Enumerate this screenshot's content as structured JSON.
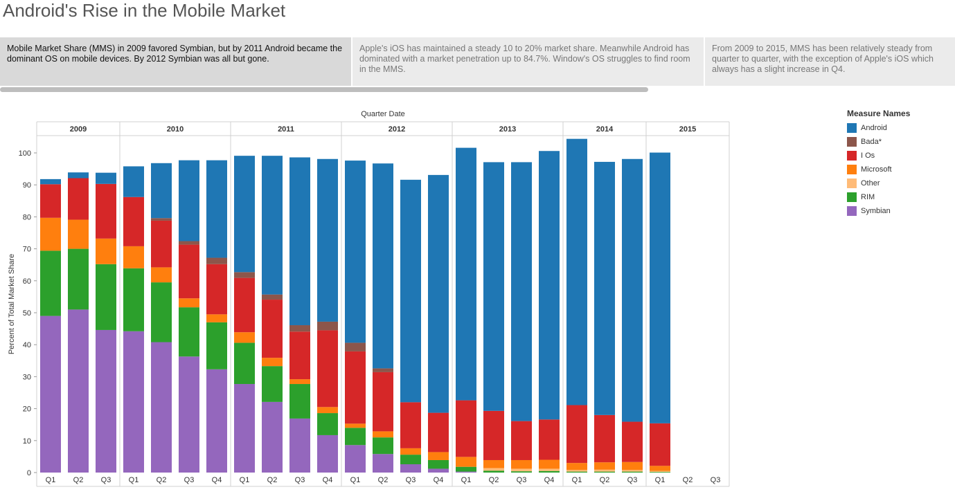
{
  "title": "Android's Rise in the Mobile Market",
  "captions": [
    "Mobile Market Share (MMS) in 2009 favored Symbian, but by 2011 Android became the dominant OS on mobile devices.  By 2012 Symbian was all but gone.",
    "Apple's iOS has maintained a steady 10 to 20% market share.  Meanwhile Android has dominated with a market penetration up to 84.7%.  Window's OS struggles to find room in the MMS.",
    "From 2009 to 2015, MMS has been relatively steady from quarter to quarter, with the exception of Apple's iOS which always has a slight increase in Q4."
  ],
  "legend": {
    "title": "Measure Names"
  },
  "colors": {
    "Android": "#1f77b4",
    "Bada*": "#8c564b",
    "I Os": "#d62728",
    "Microsoft": "#ff7f0e",
    "Other": "#ffbb78",
    "RIM": "#2ca02c",
    "Symbian": "#9467bd"
  },
  "chart_data": {
    "type": "bar",
    "stacked": true,
    "title": "",
    "xlabel": "Quarter Date",
    "ylabel": "Percent of Total Market Share",
    "ylim": [
      0,
      105
    ],
    "yticks": [
      0,
      10,
      20,
      30,
      40,
      50,
      60,
      70,
      80,
      90,
      100
    ],
    "grid": false,
    "legend_position": "right",
    "groups": [
      {
        "year": "2009",
        "quarters": [
          "Q1",
          "Q2",
          "Q3"
        ]
      },
      {
        "year": "2010",
        "quarters": [
          "Q1",
          "Q2",
          "Q3",
          "Q4"
        ]
      },
      {
        "year": "2011",
        "quarters": [
          "Q1",
          "Q2",
          "Q3",
          "Q4"
        ]
      },
      {
        "year": "2012",
        "quarters": [
          "Q1",
          "Q2",
          "Q3",
          "Q4"
        ]
      },
      {
        "year": "2013",
        "quarters": [
          "Q1",
          "Q2",
          "Q3",
          "Q4"
        ]
      },
      {
        "year": "2014",
        "quarters": [
          "Q1",
          "Q2",
          "Q3"
        ]
      },
      {
        "year": "2015",
        "quarters": [
          "Q1",
          "Q2",
          "Q3"
        ]
      }
    ],
    "stack_order": [
      "Symbian",
      "RIM",
      "Other",
      "Microsoft",
      "I Os",
      "Bada*",
      "Android"
    ],
    "series": [
      {
        "name": "Android",
        "values": [
          1.6,
          1.8,
          3.5,
          9.6,
          17.2,
          25.3,
          30.5,
          36.4,
          43.4,
          52.5,
          50.9,
          57.0,
          64.1,
          69.6,
          74.4,
          79.0,
          77.8,
          81.0,
          84.0,
          83.3,
          79.2,
          82.2,
          84.7
        ]
      },
      {
        "name": "Bada*",
        "values": [
          0,
          0,
          0,
          0,
          0.8,
          1.1,
          2.0,
          1.8,
          1.6,
          2.0,
          2.7,
          2.7,
          1.2,
          0,
          0,
          0,
          0,
          0,
          0,
          0,
          0,
          0,
          0
        ]
      },
      {
        "name": "I Os",
        "values": [
          10.5,
          13.0,
          17.1,
          15.4,
          14.6,
          16.8,
          15.7,
          17.0,
          18.2,
          14.9,
          24.0,
          22.6,
          18.5,
          14.4,
          12.3,
          17.7,
          15.4,
          12.2,
          12.6,
          18.1,
          14.8,
          12.6,
          13.3
        ]
      },
      {
        "name": "Microsoft",
        "values": [
          10.3,
          9.1,
          8.0,
          6.9,
          4.7,
          2.8,
          2.5,
          3.3,
          2.6,
          1.5,
          1.9,
          1.3,
          1.9,
          2.0,
          2.5,
          3.1,
          2.5,
          2.7,
          2.8,
          2.2,
          2.3,
          2.5,
          1.6
        ]
      },
      {
        "name": "Other",
        "values": [
          0,
          0,
          0,
          0,
          0,
          0,
          0,
          0,
          0,
          0,
          0,
          0,
          0,
          0,
          0,
          0,
          0.8,
          0.8,
          0.7,
          0.5,
          0.6,
          0.5,
          0.3
        ]
      },
      {
        "name": "RIM",
        "values": [
          20.4,
          19.0,
          20.6,
          19.7,
          18.7,
          15.4,
          14.7,
          12.9,
          11.2,
          10.8,
          6.9,
          5.4,
          5.2,
          3.0,
          2.7,
          1.5,
          0.6,
          0.4,
          0.5,
          0.3,
          0.3,
          0.3,
          0.2
        ]
      },
      {
        "name": "Symbian",
        "values": [
          49.0,
          51.0,
          44.6,
          44.2,
          40.8,
          36.3,
          32.3,
          27.7,
          22.1,
          16.9,
          11.7,
          8.6,
          5.8,
          2.6,
          1.2,
          0.3,
          0,
          0,
          0,
          0,
          0,
          0,
          0
        ]
      }
    ]
  }
}
